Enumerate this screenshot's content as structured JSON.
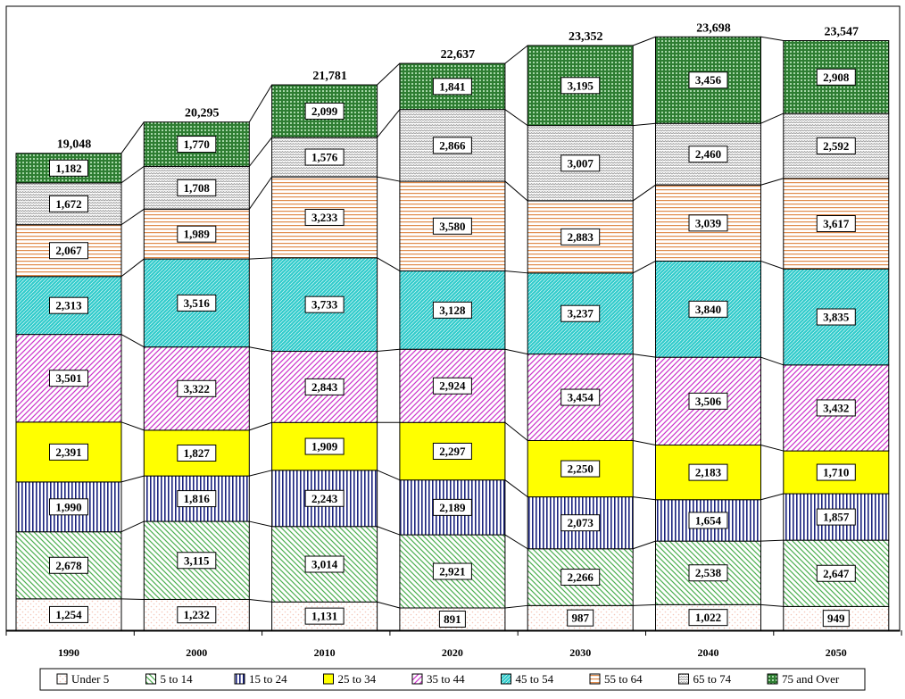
{
  "chart_data": {
    "type": "bar",
    "stacked": true,
    "categories": [
      "1990",
      "2000",
      "2010",
      "2020",
      "2030",
      "2040",
      "2050"
    ],
    "series": [
      {
        "name": "Under 5",
        "color": "#f5c6b8",
        "pattern": "dots",
        "values": [
          1254,
          1232,
          1131,
          891,
          987,
          1022,
          949
        ]
      },
      {
        "name": "5 to 14",
        "color": "#4caf50",
        "pattern": "diag-rev",
        "values": [
          2678,
          3115,
          3014,
          2921,
          2266,
          2538,
          2647
        ]
      },
      {
        "name": "15 to 24",
        "color": "#1a237e",
        "pattern": "vlines",
        "values": [
          1990,
          1816,
          2243,
          2189,
          2073,
          1654,
          1857
        ]
      },
      {
        "name": "25 to 34",
        "color": "#ffff00",
        "pattern": "solid",
        "values": [
          2391,
          1827,
          1909,
          2297,
          2250,
          2183,
          1710
        ]
      },
      {
        "name": "35 to 44",
        "color": "#cc33cc",
        "pattern": "diag",
        "values": [
          3501,
          3322,
          2843,
          2924,
          3454,
          3506,
          3432
        ]
      },
      {
        "name": "45 to 54",
        "color": "#33cccc",
        "pattern": "dense",
        "values": [
          2313,
          3516,
          3733,
          3128,
          3237,
          3840,
          3835
        ]
      },
      {
        "name": "55 to 64",
        "color": "#e08a4a",
        "pattern": "hlines",
        "values": [
          2067,
          1989,
          3233,
          3580,
          2883,
          3039,
          3617
        ]
      },
      {
        "name": "65 to 74",
        "color": "#9e9e9e",
        "pattern": "wave",
        "values": [
          1672,
          1708,
          1576,
          2866,
          3007,
          2460,
          2592
        ]
      },
      {
        "name": "75 and Over",
        "color": "#2e7d32",
        "pattern": "grid",
        "values": [
          1182,
          1770,
          2099,
          1841,
          3195,
          3456,
          2908
        ]
      }
    ],
    "segment_labels": [
      [
        "1,254",
        "2,678",
        "1,990",
        "2,391",
        "3,501",
        "2,313",
        "2,067",
        "1,672",
        "1,182"
      ],
      [
        "1,232",
        "3,115",
        "1,816",
        "1,827",
        "3,322",
        "3,516",
        "1,989",
        "1,708",
        "1,770"
      ],
      [
        "1,131",
        "3,014",
        "2,243",
        "1,909",
        "2,843",
        "3,733",
        "3,233",
        "1,576",
        "2,099"
      ],
      [
        "891",
        "2,921",
        "2,189",
        "2,297",
        "2,924",
        "3,128",
        "3,580",
        "2,866",
        "1,841"
      ],
      [
        "987",
        "2,266",
        "2,073",
        "2,250",
        "3,454",
        "3,237",
        "2,883",
        "3,007",
        "3,195"
      ],
      [
        "1,022",
        "2,538",
        "1,654",
        "2,183",
        "3,506",
        "3,840",
        "3,039",
        "2,460",
        "3,456"
      ],
      [
        "949",
        "2,647",
        "1,857",
        "1,710",
        "3,432",
        "3,835",
        "3,617",
        "2,592",
        "2,908"
      ]
    ],
    "totals": [
      19048,
      20295,
      21781,
      22637,
      23352,
      23698,
      23547
    ],
    "total_labels": [
      "19,048",
      "20,295",
      "21,781",
      "22,637",
      "23,352",
      "23,698",
      "23,547"
    ],
    "ylim": [
      0,
      25000
    ],
    "legend_position": "bottom",
    "title": "",
    "xlabel": "",
    "ylabel": ""
  }
}
